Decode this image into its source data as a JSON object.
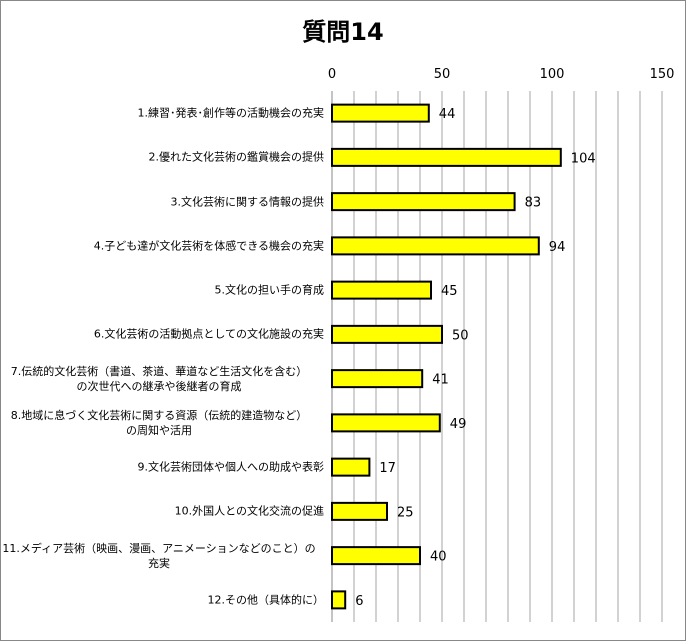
{
  "chart_data": {
    "type": "bar",
    "orientation": "horizontal",
    "title": "質問14",
    "xlim": [
      0,
      150
    ],
    "ticks": [
      0,
      50,
      100,
      150
    ],
    "grid_step": 10,
    "tick_labels": [
      "0",
      "50",
      "100",
      "150"
    ],
    "axis_position": "top",
    "bar_color": "#FFFF00",
    "bar_edge": "#000000",
    "categories": [
      "1.練習･発表･創作等の活動機会の充実",
      "2.優れた文化芸術の鑑賞機会の提供",
      "3.文化芸術に関する情報の提供",
      "4.子ども達が文化芸術を体感できる機会の充実",
      "5.文化の担い手の育成",
      "6.文化芸術の活動拠点としての文化施設の充実",
      "7.伝統的文化芸術（書道、茶道、華道など生活文化を含む）\nの次世代への継承や後継者の育成",
      "8.地域に息づく文化芸術に関する資源（伝統的建造物など）\nの周知や活用",
      "9.文化芸術団体や個人への助成や表彰",
      "10.外国人との文化交流の促進",
      "11.メディア芸術（映画、漫画、アニメーションなどのこと）の\n充実",
      "12.その他（具体的に）"
    ],
    "values": [
      44,
      104,
      83,
      94,
      45,
      50,
      41,
      49,
      17,
      25,
      40,
      6
    ],
    "value_labels": [
      "44",
      "104",
      "83",
      "94",
      "45",
      "50",
      "41",
      "49",
      "17",
      "25",
      "40",
      "6"
    ]
  }
}
